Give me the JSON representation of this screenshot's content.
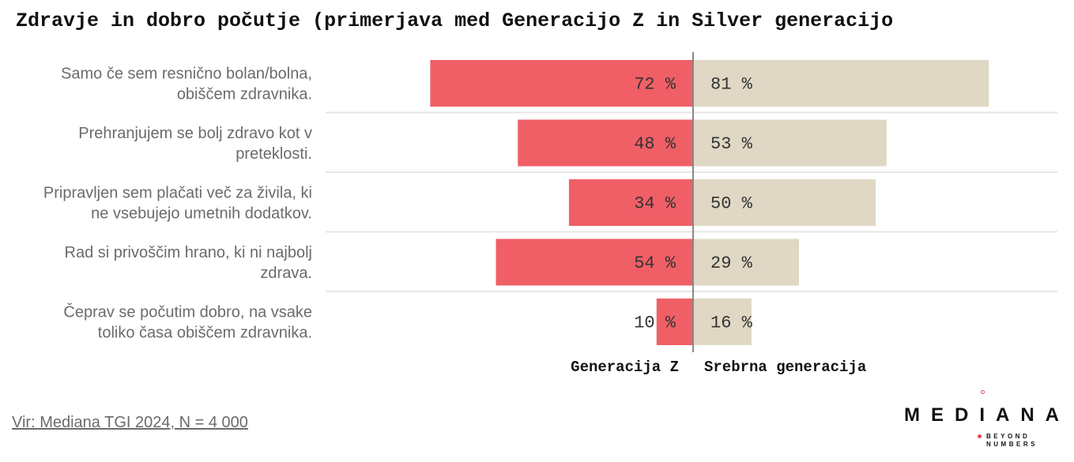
{
  "title": "Zdravje in dobro počutje (primerjava med Generacijo Z in Silver generacijo",
  "colors": {
    "gen_z": "#f05f66",
    "silver": "#e0d8c4",
    "axis": "#888888",
    "grid": "#e6e6e6"
  },
  "chart_data": {
    "type": "bar",
    "orientation": "horizontal-diverging",
    "categories": [
      [
        "Samo če sem resnično bolan/bolna,",
        "obiščem zdravnika."
      ],
      [
        "Prehranjujem se bolj zdravo kot v",
        "preteklosti."
      ],
      [
        "Pripravljen sem plačati več za živila, ki",
        "ne vsebujejo umetnih dodatkov."
      ],
      [
        "Rad si privoščim hrano, ki ni najbolj",
        "zdrava."
      ],
      [
        "Čeprav se počutim dobro, na vsake",
        "toliko časa obiščem zdravnika."
      ]
    ],
    "series": [
      {
        "name": "Generacija Z",
        "values": [
          72,
          48,
          34,
          54,
          10
        ],
        "labels": [
          "72 %",
          "48 %",
          "34 %",
          "54 %",
          "10 %"
        ]
      },
      {
        "name": "Srebrna generacija",
        "values": [
          81,
          53,
          50,
          29,
          16
        ],
        "labels": [
          "81 %",
          "53 %",
          "50 %",
          "29 %",
          "16 %"
        ]
      }
    ],
    "xlim": [
      0,
      100
    ],
    "grid": true,
    "legend": "bottom"
  },
  "source": "Vir: Mediana TGI 2024, N = 4 000",
  "logo": {
    "name": "MEDIANA",
    "tagline": "BEYOND NUMBERS"
  }
}
